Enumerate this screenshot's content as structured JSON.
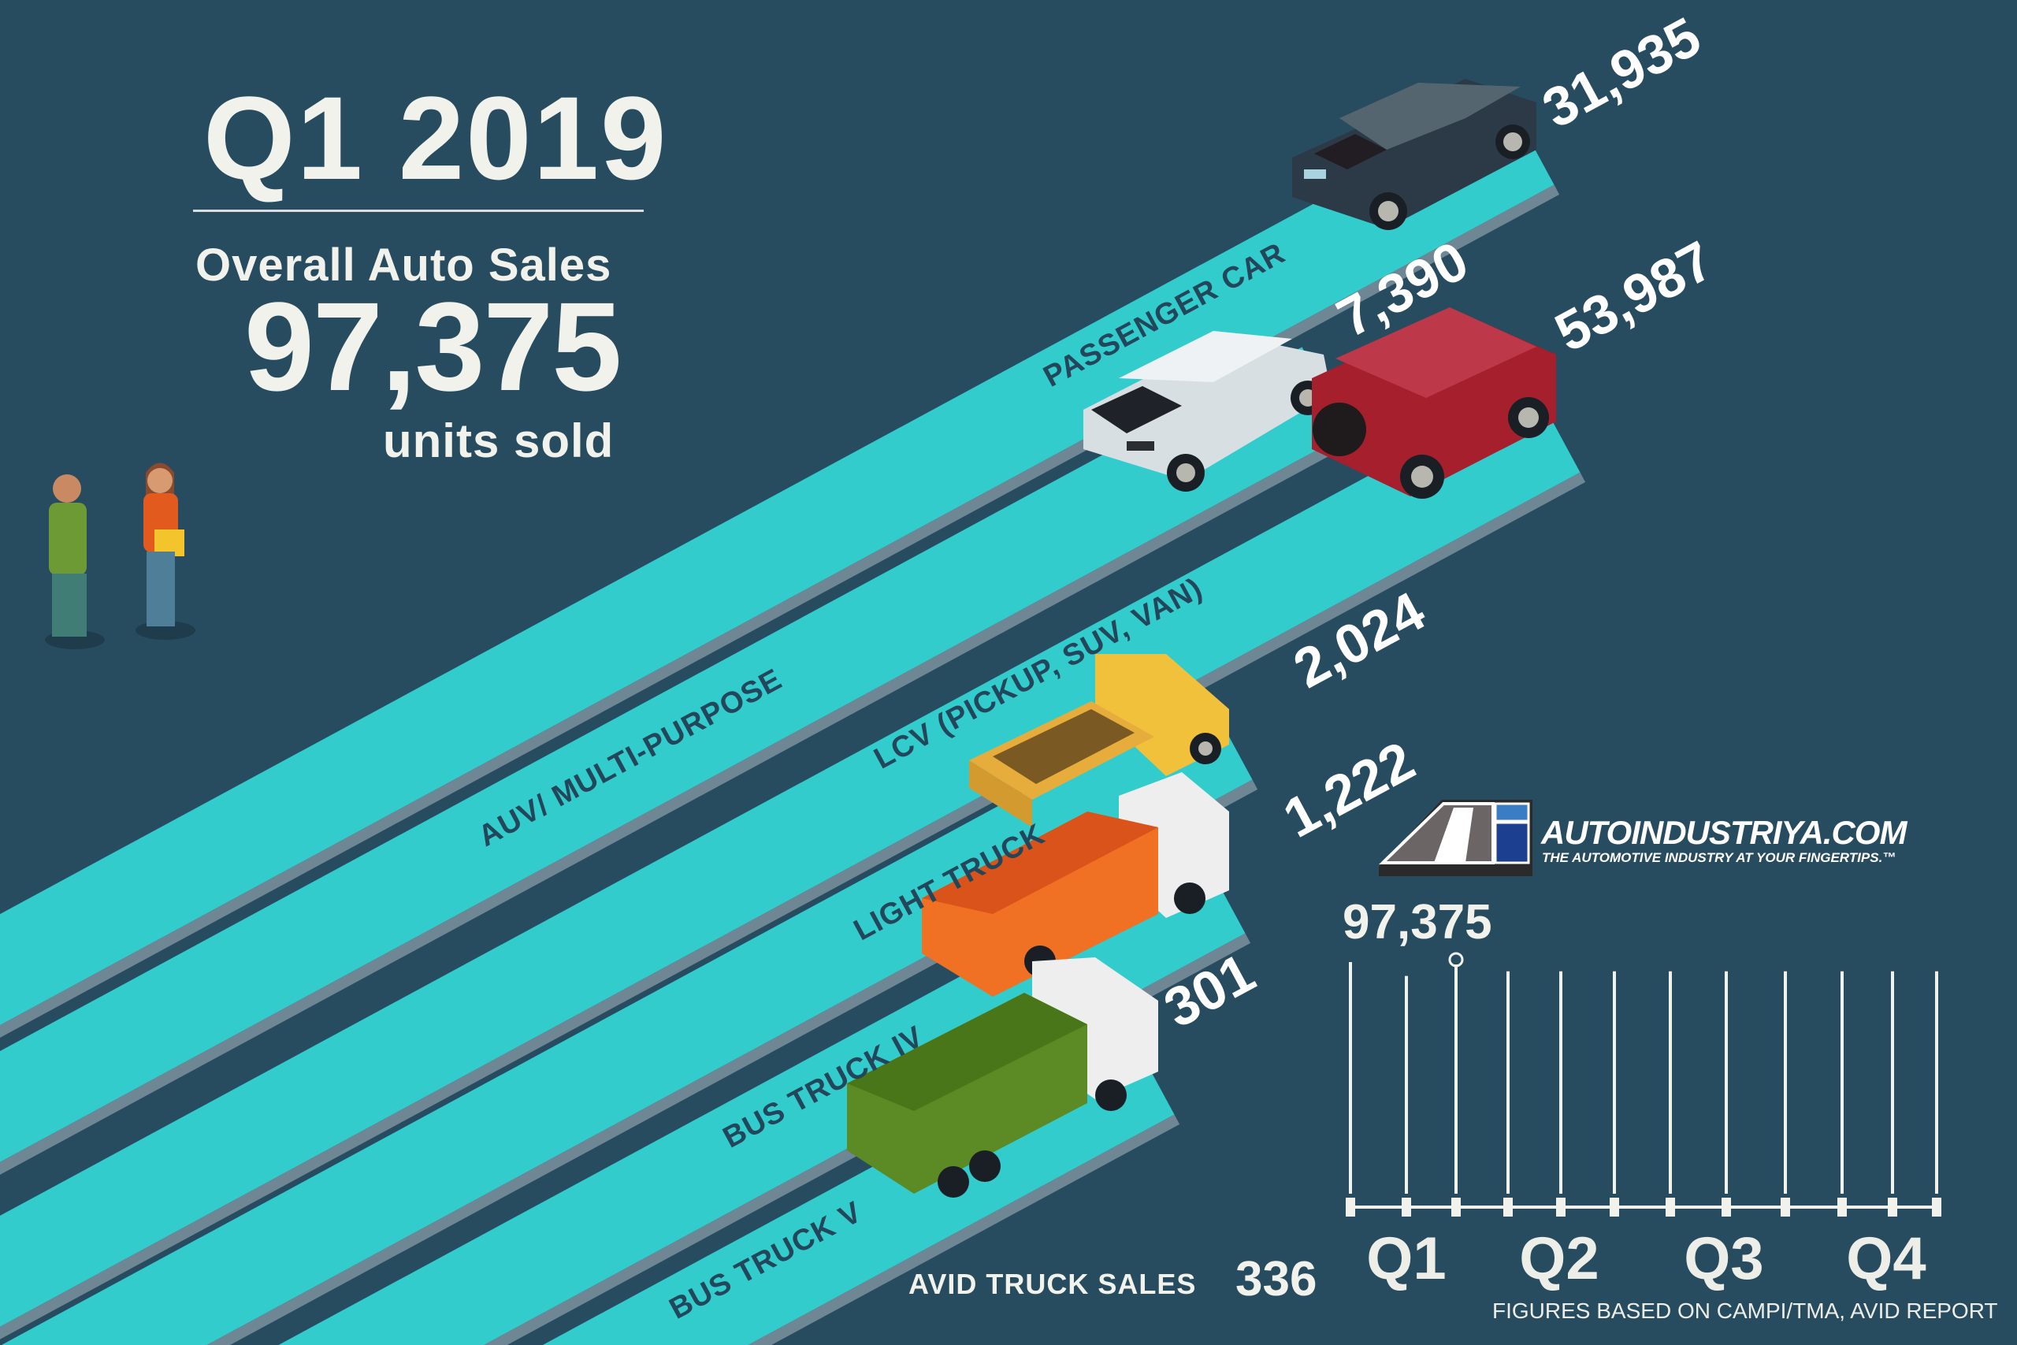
{
  "header": {
    "period": "Q1 2019",
    "overall_label": "Overall Auto Sales",
    "overall_value": "97,375",
    "units_label": "units sold"
  },
  "categories": [
    {
      "label": "PASSENGER CAR",
      "value": "31,935",
      "vehicle": "hatchback-dark-grey"
    },
    {
      "label": "AUV/ MULTI-PURPOSE",
      "value": "7,390",
      "vehicle": "mpv-white"
    },
    {
      "label": "LCV (PICKUP, SUV, VAN)",
      "value": "53,987",
      "vehicle": "suv-red"
    },
    {
      "label": "LIGHT TRUCK",
      "value": "2,024",
      "vehicle": "light-truck-yellow"
    },
    {
      "label": "BUS TRUCK IV",
      "value": "1,222",
      "vehicle": "dump-truck-orange"
    },
    {
      "label": "BUS TRUCK V",
      "value": "301",
      "vehicle": "dump-truck-green"
    }
  ],
  "avid": {
    "label": "AVID TRUCK SALES",
    "value": "336"
  },
  "logo": {
    "name": "AUTOINDUSTRIYA.COM",
    "tagline": "THE AUTOMOTIVE INDUSTRY AT YOUR FINGERTIPS.™"
  },
  "footnote": "FIGURES BASED ON CAMPI/TMA, AVID REPORT",
  "colors": {
    "background": "#284c5f",
    "road": "#33cccc",
    "text": "#f2f2ec",
    "label": "#23465a"
  },
  "chart_data": {
    "type": "bar",
    "annotation": "97,375",
    "x_tick_labels": [
      "Q1",
      "Q2",
      "Q3",
      "Q4"
    ],
    "levels": [
      1.0,
      0.94,
      0.99,
      0.96,
      0.96,
      0.96,
      0.96,
      0.96,
      0.96,
      0.96,
      0.96,
      0.96
    ],
    "marker_index": 2,
    "grid": false
  }
}
